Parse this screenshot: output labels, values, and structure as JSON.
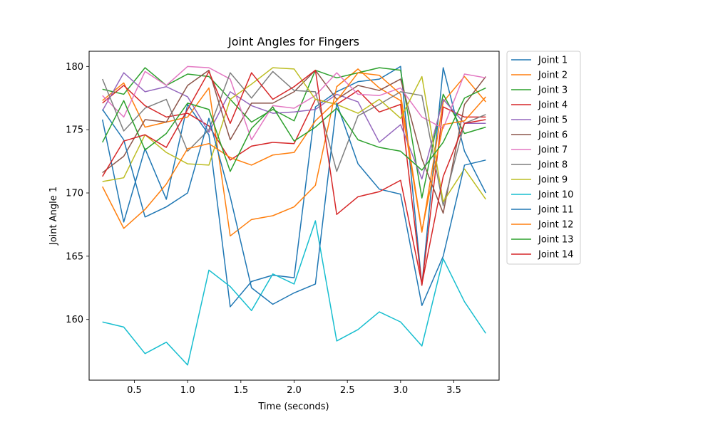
{
  "chart_data": {
    "type": "line",
    "title": "Joint Angles for Fingers",
    "xlabel": "Time (seconds)",
    "ylabel": "Joint Angle 1",
    "xlim": [
      0.075,
      3.925
    ],
    "ylim": [
      155.2,
      181.2
    ],
    "xticks": [
      "0.5",
      "1.0",
      "1.5",
      "2.0",
      "2.5",
      "3.0",
      "3.5"
    ],
    "xtick_values": [
      0.5,
      1.0,
      1.5,
      2.0,
      2.5,
      3.0,
      3.5
    ],
    "yticks": [
      "160",
      "165",
      "170",
      "175",
      "180"
    ],
    "ytick_values": [
      160,
      165,
      170,
      175,
      180
    ],
    "grid": false,
    "legend_position": "outside-right-top",
    "x": [
      0.2,
      0.4,
      0.6,
      0.8,
      1.0,
      1.2,
      1.4,
      1.6,
      1.8,
      2.0,
      2.2,
      2.4,
      2.6,
      2.8,
      3.0,
      3.2,
      3.4,
      3.6,
      3.8
    ],
    "series": [
      {
        "name": "Joint 1",
        "color": "#1f77b4",
        "values": [
          175.8,
          167.7,
          173.5,
          169.5,
          177.0,
          174.6,
          161.0,
          163.0,
          163.5,
          163.3,
          176.8,
          178.0,
          178.8,
          179.0,
          180.0,
          162.7,
          179.9,
          173.3,
          170.0
        ]
      },
      {
        "name": "Joint 2",
        "color": "#ff7f0e",
        "values": [
          177.3,
          178.7,
          175.2,
          175.6,
          176.0,
          178.3,
          166.6,
          167.9,
          168.2,
          168.9,
          170.6,
          178.4,
          179.8,
          178.3,
          177.3,
          166.9,
          177.2,
          179.2,
          177.2
        ]
      },
      {
        "name": "Joint 3",
        "color": "#2ca02c",
        "values": [
          178.2,
          177.8,
          179.9,
          178.5,
          179.4,
          179.2,
          177.4,
          175.6,
          176.6,
          175.7,
          179.7,
          179.1,
          179.5,
          179.9,
          179.7,
          169.6,
          177.8,
          174.7,
          175.2
        ]
      },
      {
        "name": "Joint 4",
        "color": "#d62728",
        "values": [
          177.1,
          178.5,
          176.9,
          176.0,
          176.3,
          175.3,
          172.6,
          173.7,
          174.0,
          173.9,
          177.4,
          177.0,
          178.1,
          176.4,
          177.0,
          162.7,
          176.8,
          176.0,
          176.0
        ]
      },
      {
        "name": "Joint 5",
        "color": "#9467bd",
        "values": [
          176.5,
          179.5,
          178.0,
          178.4,
          177.6,
          174.8,
          178.0,
          176.9,
          176.3,
          176.4,
          176.6,
          177.8,
          177.2,
          174.0,
          175.4,
          171.1,
          177.4,
          175.5,
          175.5
        ]
      },
      {
        "name": "Joint 6",
        "color": "#8c564b",
        "values": [
          171.6,
          172.9,
          175.8,
          175.6,
          178.5,
          179.7,
          174.2,
          177.1,
          177.1,
          178.0,
          179.7,
          177.4,
          178.5,
          178.1,
          179.0,
          172.7,
          168.4,
          177.0,
          179.2
        ]
      },
      {
        "name": "Joint 7",
        "color": "#e377c2",
        "values": [
          177.7,
          176.0,
          179.6,
          178.5,
          180.0,
          179.9,
          179.0,
          174.2,
          176.9,
          176.7,
          177.7,
          179.5,
          177.8,
          177.7,
          178.3,
          176.0,
          175.1,
          179.4,
          179.1
        ]
      },
      {
        "name": "Joint 8",
        "color": "#7f7f7f",
        "values": [
          179.0,
          174.9,
          176.7,
          177.4,
          173.3,
          175.0,
          179.5,
          177.5,
          179.6,
          178.1,
          178.0,
          171.7,
          176.1,
          177.0,
          178.0,
          177.7,
          169.0,
          175.5,
          176.2
        ]
      },
      {
        "name": "Joint 9",
        "color": "#bcbd22",
        "values": [
          170.9,
          171.2,
          174.6,
          173.2,
          172.3,
          172.2,
          177.4,
          178.6,
          179.9,
          179.8,
          177.4,
          177.0,
          176.3,
          177.4,
          175.9,
          179.2,
          169.3,
          171.9,
          169.5
        ]
      },
      {
        "name": "Joint 10",
        "color": "#17becf",
        "values": [
          159.8,
          159.4,
          157.3,
          158.2,
          156.4,
          163.9,
          162.6,
          160.7,
          163.6,
          162.8,
          167.8,
          158.3,
          159.2,
          160.6,
          159.8,
          157.9,
          164.8,
          161.4,
          158.9
        ]
      },
      {
        "name": "Joint 11",
        "color": "#1f77b4",
        "values": [
          176.6,
          174.2,
          168.1,
          168.9,
          170.0,
          175.9,
          169.7,
          162.5,
          161.2,
          162.1,
          162.8,
          177.1,
          172.3,
          170.3,
          169.9,
          161.1,
          165.0,
          172.2,
          172.6
        ]
      },
      {
        "name": "Joint 12",
        "color": "#ff7f0e",
        "values": [
          170.5,
          167.2,
          168.7,
          170.7,
          173.5,
          173.9,
          172.8,
          172.2,
          173.0,
          173.2,
          175.7,
          177.3,
          179.5,
          179.3,
          177.8,
          167.0,
          175.4,
          175.7,
          177.6
        ]
      },
      {
        "name": "Joint 13",
        "color": "#2ca02c",
        "values": [
          174.0,
          177.3,
          173.4,
          174.7,
          177.1,
          176.6,
          171.7,
          175.1,
          176.8,
          174.1,
          175.2,
          176.7,
          174.2,
          173.6,
          173.3,
          171.8,
          174.0,
          177.5,
          178.3
        ]
      },
      {
        "name": "Joint 14",
        "color": "#d62728",
        "values": [
          171.3,
          174.1,
          174.6,
          173.6,
          176.6,
          179.6,
          175.5,
          179.5,
          177.4,
          178.4,
          179.7,
          168.3,
          169.7,
          170.1,
          171.0,
          162.8,
          171.3,
          175.5,
          175.8
        ]
      }
    ]
  }
}
